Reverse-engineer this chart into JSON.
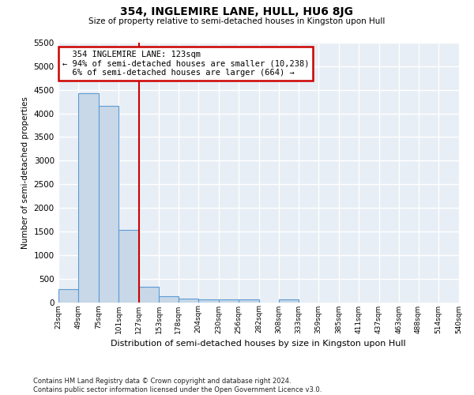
{
  "title": "354, INGLEMIRE LANE, HULL, HU6 8JG",
  "subtitle": "Size of property relative to semi-detached houses in Kingston upon Hull",
  "xlabel": "Distribution of semi-detached houses by size in Kingston upon Hull",
  "ylabel": "Number of semi-detached properties",
  "footnote": "Contains HM Land Registry data © Crown copyright and database right 2024.\nContains public sector information licensed under the Open Government Licence v3.0.",
  "property_label": "354 INGLEMIRE LANE: 123sqm",
  "pct_smaller": 94,
  "count_smaller": 10238,
  "pct_larger": 6,
  "count_larger": 664,
  "bar_color": "#c8d8e8",
  "bar_edge_color": "#5b9bd5",
  "vline_color": "#cc0000",
  "annotation_box_color": "#cc0000",
  "bg_color": "#e8eef5",
  "grid_color": "#ffffff",
  "ylim": [
    0,
    5500
  ],
  "bin_edges": [
    23,
    49,
    75,
    101,
    127,
    153,
    178,
    204,
    230,
    256,
    282,
    308,
    333,
    359,
    385,
    411,
    437,
    463,
    488,
    514,
    540
  ],
  "bin_counts": [
    280,
    4430,
    4160,
    1540,
    320,
    120,
    75,
    60,
    55,
    65,
    0,
    60,
    0,
    0,
    0,
    0,
    0,
    0,
    0,
    0
  ],
  "vline_x": 127
}
